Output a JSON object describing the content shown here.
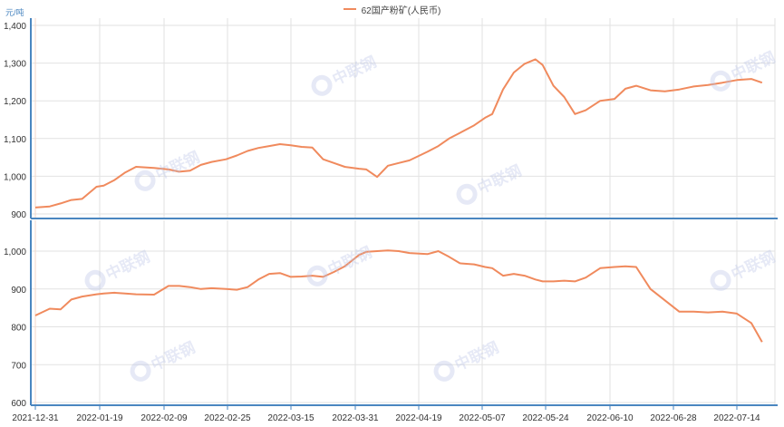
{
  "legend": {
    "label": "62国产粉矿(人民币)",
    "color": "#f08a5d"
  },
  "unit_label": "元/吨",
  "watermark": "中联钢",
  "colors": {
    "axis": "#4a86c0",
    "grid": "#e2e2e2",
    "line": "#f08a5d",
    "tick_text": "#333333",
    "unit_text": "#4a86c0"
  },
  "x_ticks": [
    "2021-12-31",
    "2022-01-19",
    "2022-02-09",
    "2022-02-25",
    "2022-03-15",
    "2022-03-31",
    "2022-04-19",
    "2022-05-07",
    "2022-05-24",
    "2022-06-10",
    "2022-06-28",
    "2022-07-14"
  ],
  "chart_data": [
    {
      "type": "line",
      "title": "62国产粉矿(人民币)",
      "xlabel": "",
      "ylabel": "元/吨",
      "ylim": [
        900,
        1400
      ],
      "y_ticks": [
        "1,400",
        "1,300",
        "1,200",
        "1,100",
        "1,000",
        "900"
      ],
      "grid": true,
      "legend_position": "top",
      "x": [
        "2021-12-31",
        "2022-01-04",
        "2022-01-07",
        "2022-01-10",
        "2022-01-13",
        "2022-01-17",
        "2022-01-19",
        "2022-01-22",
        "2022-01-25",
        "2022-01-28",
        "2022-02-02",
        "2022-02-06",
        "2022-02-09",
        "2022-02-12",
        "2022-02-15",
        "2022-02-18",
        "2022-02-22",
        "2022-02-25",
        "2022-02-28",
        "2022-03-03",
        "2022-03-06",
        "2022-03-09",
        "2022-03-12",
        "2022-03-15",
        "2022-03-18",
        "2022-03-21",
        "2022-03-24",
        "2022-03-27",
        "2022-03-31",
        "2022-04-02",
        "2022-04-05",
        "2022-04-08",
        "2022-04-11",
        "2022-04-14",
        "2022-04-19",
        "2022-04-22",
        "2022-04-25",
        "2022-04-28",
        "2022-05-02",
        "2022-05-05",
        "2022-05-07",
        "2022-05-10",
        "2022-05-13",
        "2022-05-16",
        "2022-05-19",
        "2022-05-21",
        "2022-05-24",
        "2022-05-27",
        "2022-05-30",
        "2022-06-02",
        "2022-06-06",
        "2022-06-10",
        "2022-06-13",
        "2022-06-16",
        "2022-06-20",
        "2022-06-24",
        "2022-06-28",
        "2022-07-02",
        "2022-07-06",
        "2022-07-10",
        "2022-07-14",
        "2022-07-18",
        "2022-07-21"
      ],
      "series": [
        {
          "name": "62国产粉矿(人民币)",
          "values": [
            917,
            920,
            928,
            937,
            940,
            972,
            975,
            990,
            1010,
            1025,
            1022,
            1018,
            1012,
            1015,
            1030,
            1038,
            1045,
            1055,
            1067,
            1075,
            1080,
            1085,
            1082,
            1078,
            1076,
            1045,
            1035,
            1025,
            1020,
            1018,
            998,
            1028,
            1035,
            1042,
            1065,
            1080,
            1100,
            1115,
            1135,
            1155,
            1165,
            1230,
            1275,
            1298,
            1310,
            1295,
            1240,
            1210,
            1165,
            1175,
            1200,
            1205,
            1232,
            1240,
            1228,
            1225,
            1230,
            1238,
            1242,
            1248,
            1255,
            1258,
            1248
          ]
        }
      ]
    },
    {
      "type": "line",
      "title": "",
      "xlabel": "",
      "ylabel": "",
      "ylim": [
        600,
        1050
      ],
      "y_ticks": [
        "1,000",
        "900",
        "800",
        "700",
        "600"
      ],
      "grid": true,
      "x": [
        "2021-12-31",
        "2022-01-04",
        "2022-01-07",
        "2022-01-10",
        "2022-01-13",
        "2022-01-17",
        "2022-01-19",
        "2022-01-22",
        "2022-01-25",
        "2022-01-28",
        "2022-02-02",
        "2022-02-06",
        "2022-02-09",
        "2022-02-12",
        "2022-02-15",
        "2022-02-18",
        "2022-02-22",
        "2022-02-25",
        "2022-02-28",
        "2022-03-03",
        "2022-03-06",
        "2022-03-09",
        "2022-03-12",
        "2022-03-15",
        "2022-03-18",
        "2022-03-21",
        "2022-03-24",
        "2022-03-27",
        "2022-03-31",
        "2022-04-02",
        "2022-04-05",
        "2022-04-08",
        "2022-04-11",
        "2022-04-14",
        "2022-04-19",
        "2022-04-22",
        "2022-04-25",
        "2022-04-28",
        "2022-05-02",
        "2022-05-05",
        "2022-05-07",
        "2022-05-10",
        "2022-05-13",
        "2022-05-16",
        "2022-05-19",
        "2022-05-21",
        "2022-05-24",
        "2022-05-27",
        "2022-05-30",
        "2022-06-02",
        "2022-06-06",
        "2022-06-10",
        "2022-06-13",
        "2022-06-16",
        "2022-06-20",
        "2022-06-24",
        "2022-06-28",
        "2022-07-02",
        "2022-07-06",
        "2022-07-10",
        "2022-07-14",
        "2022-07-18",
        "2022-07-21"
      ],
      "series": [
        {
          "name": "62国产粉矿(人民币)",
          "values": [
            830,
            848,
            846,
            872,
            880,
            886,
            888,
            890,
            888,
            886,
            885,
            908,
            908,
            905,
            900,
            902,
            900,
            898,
            905,
            925,
            940,
            942,
            932,
            933,
            935,
            932,
            945,
            960,
            990,
            998,
            1000,
            1002,
            1000,
            995,
            992,
            1000,
            985,
            968,
            965,
            958,
            955,
            935,
            940,
            935,
            925,
            920,
            920,
            922,
            920,
            930,
            955,
            958,
            960,
            958,
            900,
            870,
            840,
            840,
            838,
            840,
            835,
            810,
            760
          ]
        }
      ]
    }
  ]
}
